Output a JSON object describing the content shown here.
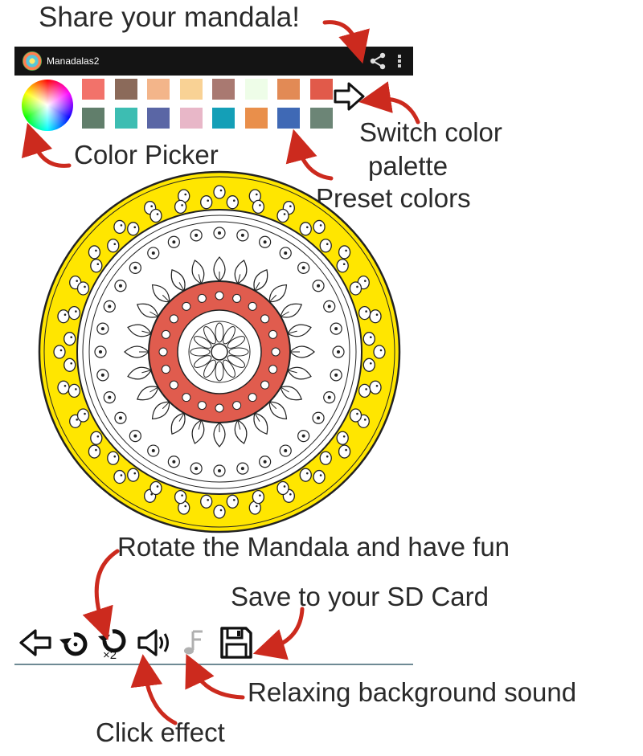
{
  "app": {
    "title": "Manadalas2"
  },
  "annotations": {
    "share": "Share your mandala!",
    "switch_line1": "Switch color",
    "switch_line2": "palette",
    "picker": "Color Picker",
    "preset": "Preset colors",
    "rotate": "Rotate the Mandala and have fun",
    "save": "Save to your SD Card",
    "relax": "Relaxing background sound",
    "click": "Click effect"
  },
  "palette": {
    "row1": [
      "#f2726a",
      "#8b6a5a",
      "#f3b58a",
      "#f9d295",
      "#a97971",
      "#eefde8",
      "#e28a55",
      "#e15a4a"
    ],
    "row2": [
      "#617e6b",
      "#3dbdb2",
      "#5a66a5",
      "#e8b7c8",
      "#149fb7",
      "#e98f4b",
      "#3f69b5",
      "#6c8576"
    ]
  },
  "bottom_bar": {
    "tools": [
      "back-icon",
      "rotate-icon",
      "rotate-x2-icon",
      "click-sound-icon",
      "music-icon",
      "save-icon"
    ],
    "rotate_x2_label": "×2"
  },
  "colors": {
    "appbar": "#141414",
    "ring": "#ffe600",
    "center": "#e05c4e",
    "arrow": "#cc2a1e",
    "divider": "#6e8a94"
  }
}
